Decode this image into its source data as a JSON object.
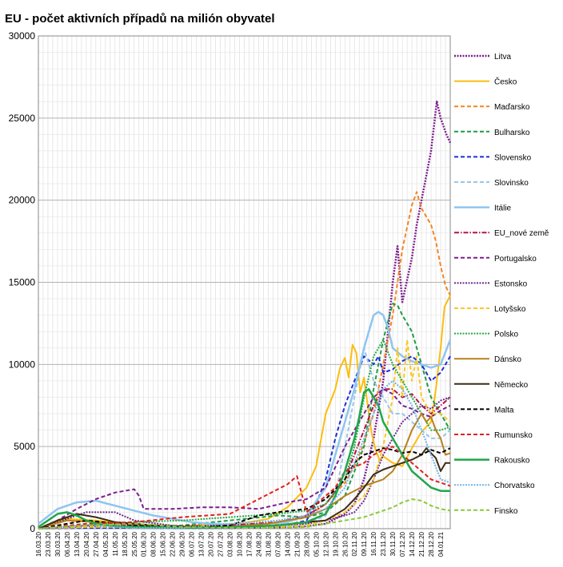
{
  "chart_data": {
    "type": "line",
    "title": "EU - počet aktivních případů na milión obyvatel",
    "xlabel": "",
    "ylabel": "",
    "ylim": [
      0,
      30000
    ],
    "yticks": [
      "0",
      "5000",
      "10000",
      "15000",
      "20000",
      "25000",
      "30000"
    ],
    "grid": true,
    "legend_position": "right",
    "x_tick_labels": [
      "16.03.20",
      "23.03.20",
      "30.03.20",
      "06.04.20",
      "13.04.20",
      "20.04.20",
      "27.04.20",
      "04.05.20",
      "11.05.20",
      "18.05.20",
      "25.05.20",
      "01.06.20",
      "08.06.20",
      "15.06.20",
      "22.06.20",
      "29.06.20",
      "06.07.20",
      "13.07.20",
      "20.07.20",
      "27.07.20",
      "03.08.20",
      "10.08.20",
      "17.08.20",
      "24.08.20",
      "31.08.20",
      "07.09.20",
      "14.09.20",
      "21.09.20",
      "28.09.20",
      "05.10.20",
      "12.10.20",
      "19.10.20",
      "26.10.20",
      "02.11.20",
      "09.11.20",
      "16.11.20",
      "23.11.20",
      "30.11.20",
      "07.12.20",
      "14.12.20",
      "21.12.20",
      "28.12.20",
      "04.01.21"
    ],
    "x_weeks": [
      0,
      1,
      2,
      3,
      4,
      5,
      6,
      7,
      8,
      9,
      10,
      11,
      12,
      13,
      14,
      15,
      16,
      17,
      18,
      19,
      20,
      21,
      22,
      23,
      24,
      25,
      26,
      27,
      28,
      29,
      30,
      31,
      32,
      33,
      34,
      35,
      36,
      37,
      38,
      39,
      40,
      41,
      42
    ],
    "series": [
      {
        "name": "Litva",
        "color": "#7b1f8c",
        "dash": "2,1.5",
        "width": 2.5,
        "x": [
          0,
          5,
          10,
          15,
          20,
          25,
          28,
          30,
          32,
          33,
          34,
          35,
          36,
          36.5,
          37,
          37.5,
          38,
          39,
          39.5,
          40,
          40.5,
          41,
          41.3,
          41.6,
          42,
          42.3,
          42.6,
          43
        ],
        "y": [
          0,
          150,
          100,
          50,
          50,
          80,
          150,
          300,
          900,
          1500,
          3000,
          5500,
          9000,
          12000,
          15000,
          17200,
          13800,
          16500,
          18500,
          20000,
          21500,
          23000,
          24500,
          26000,
          25000,
          24500,
          24000,
          23500
        ]
      },
      {
        "name": "Česko",
        "color": "#fbbd0f",
        "dash": "",
        "width": 2,
        "x": [
          0,
          3,
          6,
          9,
          12,
          15,
          18,
          21,
          24,
          26,
          28,
          29,
          30,
          31,
          31.5,
          32,
          32.4,
          32.8,
          33.2,
          33.6,
          34,
          34.4,
          34.8,
          35.2,
          35.6,
          36,
          37,
          38,
          39,
          40,
          41,
          41.5,
          42,
          42.4,
          43
        ],
        "y": [
          0,
          600,
          500,
          300,
          200,
          150,
          250,
          300,
          600,
          1300,
          2500,
          3800,
          7000,
          8500,
          9800,
          10400,
          9200,
          11200,
          10700,
          8300,
          9200,
          7400,
          5800,
          4800,
          4200,
          4400,
          4000,
          3800,
          4900,
          5900,
          6500,
          8500,
          11000,
          13500,
          14200
        ]
      },
      {
        "name": "Maďarsko",
        "color": "#f7841f",
        "dash": "5,3",
        "width": 2,
        "x": [
          0,
          4,
          8,
          12,
          16,
          20,
          24,
          28,
          30,
          32,
          33,
          34,
          35,
          36,
          37,
          38,
          39,
          39.5,
          40,
          41,
          41.5,
          42,
          42.5,
          43
        ],
        "y": [
          0,
          200,
          300,
          250,
          100,
          50,
          150,
          700,
          1500,
          2800,
          3800,
          5200,
          7000,
          10000,
          13000,
          17000,
          19700,
          20500,
          19500,
          18500,
          17500,
          16000,
          14800,
          14200
        ]
      },
      {
        "name": "Bulharsko",
        "color": "#1f9c45",
        "dash": "5,3",
        "width": 2,
        "x": [
          0,
          5,
          10,
          15,
          20,
          25,
          28,
          30,
          32,
          34,
          35,
          36,
          37,
          37.5,
          38,
          39,
          40,
          41,
          42,
          43
        ],
        "y": [
          0,
          50,
          100,
          200,
          500,
          800,
          700,
          1000,
          2000,
          5000,
          8500,
          11500,
          13700,
          13600,
          13000,
          12000,
          10000,
          8000,
          7000,
          6000
        ]
      },
      {
        "name": "Slovensko",
        "color": "#1f2fd6",
        "dash": "5,3",
        "width": 2,
        "x": [
          0,
          5,
          10,
          15,
          20,
          25,
          28,
          29,
          30,
          31,
          32,
          33,
          34,
          35,
          35.5,
          36,
          37,
          38,
          39,
          40,
          41,
          42,
          43
        ],
        "y": [
          0,
          50,
          50,
          30,
          30,
          100,
          500,
          1500,
          3000,
          5500,
          7500,
          9000,
          10500,
          10000,
          10500,
          9500,
          9700,
          10200,
          10500,
          10000,
          9000,
          9500,
          10500
        ]
      },
      {
        "name": "Slovinsko",
        "color": "#9bc4ea",
        "dash": "5,3",
        "width": 2,
        "x": [
          0,
          5,
          10,
          15,
          20,
          25,
          28,
          30,
          31,
          32,
          33,
          34,
          35,
          36,
          37,
          38,
          39,
          40,
          41,
          42,
          43
        ],
        "y": [
          0,
          300,
          50,
          50,
          50,
          100,
          300,
          800,
          2000,
          5000,
          8000,
          11000,
          9000,
          8000,
          7000,
          7000,
          6500,
          6000,
          5500,
          5500,
          6000
        ]
      },
      {
        "name": "Itálie",
        "color": "#8ec5f0",
        "dash": "",
        "width": 2.5,
        "x": [
          0,
          2,
          4,
          6,
          8,
          10,
          12,
          14,
          16,
          18,
          20,
          22,
          24,
          26,
          28,
          30,
          31,
          32,
          33,
          34,
          35,
          35.5,
          36,
          36.5,
          37,
          38,
          39,
          40,
          41,
          42,
          43
        ],
        "y": [
          300,
          1200,
          1600,
          1700,
          1400,
          1100,
          800,
          600,
          400,
          300,
          250,
          250,
          300,
          400,
          800,
          2500,
          4500,
          6500,
          8500,
          11000,
          13000,
          13200,
          13000,
          12200,
          11000,
          10500,
          10200,
          10000,
          9800,
          10000,
          11500
        ]
      },
      {
        "name": "EU_nové země",
        "color": "#b2124b",
        "dash": "6,2,1.5,2",
        "width": 2,
        "x": [
          0,
          5,
          10,
          15,
          20,
          25,
          28,
          30,
          32,
          33,
          34,
          35,
          36,
          37,
          38,
          39,
          40,
          41,
          42,
          43
        ],
        "y": [
          0,
          200,
          200,
          150,
          200,
          400,
          800,
          1500,
          3000,
          4500,
          6000,
          7500,
          8500,
          8500,
          8000,
          8200,
          7500,
          7000,
          7500,
          8000
        ]
      },
      {
        "name": "Portugalsko",
        "color": "#7b1f8c",
        "dash": "5,3",
        "width": 2,
        "x": [
          0,
          2,
          4,
          6,
          8,
          10,
          10.5,
          11,
          14,
          17,
          20,
          23,
          26,
          28,
          30,
          32,
          34,
          35,
          36,
          37,
          38,
          39,
          40,
          41,
          42,
          43
        ],
        "y": [
          0,
          500,
          1200,
          1800,
          2200,
          2400,
          2000,
          1200,
          1200,
          1300,
          1300,
          1200,
          1600,
          1800,
          2500,
          5000,
          7000,
          8000,
          8500,
          8200,
          7500,
          7300,
          7000,
          6800,
          7200,
          7500
        ]
      },
      {
        "name": "Estonsko",
        "color": "#6a2a8c",
        "dash": "2,1.5",
        "width": 2,
        "x": [
          0,
          3,
          5,
          8,
          10,
          15,
          20,
          25,
          28,
          30,
          32,
          33,
          34,
          35,
          36,
          37,
          38,
          39,
          40,
          41,
          42,
          43
        ],
        "y": [
          0,
          600,
          1000,
          1000,
          500,
          100,
          100,
          200,
          300,
          500,
          800,
          1000,
          1700,
          3000,
          4500,
          5500,
          6500,
          7000,
          7500,
          7300,
          7800,
          8000
        ]
      },
      {
        "name": "Lotyšsko",
        "color": "#fbc724",
        "dash": "5,3",
        "width": 2,
        "x": [
          0,
          5,
          10,
          15,
          20,
          25,
          28,
          30,
          32,
          34,
          35,
          36,
          37,
          37.5,
          38,
          38.5,
          39,
          39.5,
          40,
          41,
          42,
          43
        ],
        "y": [
          0,
          100,
          100,
          50,
          50,
          100,
          200,
          500,
          1000,
          2000,
          3000,
          5000,
          8000,
          11000,
          8000,
          11500,
          9000,
          10500,
          8000,
          7000,
          7000,
          6500
        ]
      },
      {
        "name": "Polsko",
        "color": "#27a844",
        "dash": "2,1.5",
        "width": 2,
        "x": [
          0,
          5,
          10,
          15,
          20,
          25,
          28,
          30,
          32,
          33,
          34,
          35,
          36,
          37,
          38,
          39,
          40,
          41,
          42,
          43
        ],
        "y": [
          0,
          200,
          400,
          500,
          700,
          900,
          1100,
          1500,
          3000,
          5000,
          8000,
          10500,
          11500,
          10000,
          9000,
          8000,
          7000,
          6000,
          6000,
          6200
        ]
      },
      {
        "name": "Dánsko",
        "color": "#b7811c",
        "dash": "",
        "width": 2,
        "x": [
          0,
          3,
          6,
          9,
          12,
          15,
          18,
          21,
          24,
          26,
          28,
          30,
          32,
          34,
          35,
          36,
          37,
          38,
          39,
          40,
          40.5,
          41,
          41.5,
          42,
          42.5,
          43
        ],
        "y": [
          0,
          500,
          400,
          300,
          100,
          80,
          100,
          150,
          300,
          500,
          700,
          1200,
          2000,
          2600,
          2800,
          3000,
          3500,
          4500,
          6000,
          7000,
          6500,
          6800,
          6000,
          5500,
          4500,
          4600
        ]
      },
      {
        "name": "Německo",
        "color": "#3d2c13",
        "dash": "",
        "width": 2,
        "x": [
          0,
          2,
          4,
          6,
          8,
          10,
          12,
          15,
          20,
          25,
          28,
          30,
          32,
          33,
          34,
          35,
          36,
          37,
          38,
          39,
          40,
          40.5,
          41,
          41.5,
          42,
          42.5,
          43
        ],
        "y": [
          0,
          500,
          900,
          700,
          400,
          300,
          200,
          100,
          80,
          200,
          400,
          500,
          1200,
          1800,
          2500,
          3300,
          3600,
          3800,
          4000,
          4200,
          4500,
          4900,
          4600,
          4300,
          3500,
          4000,
          4000
        ]
      },
      {
        "name": "Malta",
        "color": "#000000",
        "dash": "5,3",
        "width": 2,
        "x": [
          0,
          5,
          10,
          15,
          20,
          23,
          25,
          28,
          30,
          32,
          33,
          34,
          35,
          36,
          37,
          38,
          39,
          40,
          41,
          42,
          43
        ],
        "y": [
          0,
          500,
          200,
          100,
          200,
          800,
          1000,
          1200,
          1800,
          3000,
          4000,
          4500,
          4700,
          4900,
          4800,
          4600,
          4700,
          4500,
          4800,
          4600,
          4900
        ]
      },
      {
        "name": "Rumunsko",
        "color": "#e22020",
        "dash": "5,3",
        "width": 2,
        "x": [
          0,
          5,
          10,
          15,
          20,
          22,
          24,
          26,
          27,
          28,
          29,
          30,
          31,
          32,
          34,
          35,
          36,
          37,
          38,
          39,
          40,
          41,
          42,
          43
        ],
        "y": [
          0,
          300,
          400,
          700,
          900,
          1500,
          2100,
          2700,
          3200,
          1000,
          1500,
          2000,
          2500,
          3500,
          4000,
          4500,
          4800,
          5000,
          4500,
          4000,
          3500,
          3000,
          2800,
          2600
        ]
      },
      {
        "name": "Rakousko",
        "color": "#20a64b",
        "dash": "",
        "width": 2.5,
        "x": [
          0,
          1,
          2,
          3,
          4,
          5,
          6,
          8,
          10,
          15,
          20,
          25,
          28,
          30,
          31,
          32,
          33,
          33.5,
          34,
          34.5,
          35,
          35.5,
          36,
          37,
          38,
          39,
          40,
          41,
          42,
          43
        ],
        "y": [
          100,
          500,
          900,
          1000,
          800,
          500,
          300,
          150,
          100,
          50,
          80,
          200,
          400,
          900,
          2000,
          3500,
          5500,
          6800,
          8300,
          8500,
          8000,
          7500,
          6500,
          5500,
          4500,
          3500,
          3000,
          2500,
          2300,
          2300
        ]
      },
      {
        "name": "Chorvatsko",
        "color": "#6fb3e8",
        "dash": "2,1.5",
        "width": 2,
        "x": [
          0,
          5,
          10,
          15,
          20,
          25,
          28,
          30,
          32,
          33,
          34,
          35,
          36,
          37,
          38,
          39,
          40,
          41,
          42,
          43
        ],
        "y": [
          0,
          200,
          50,
          50,
          300,
          500,
          800,
          1200,
          2500,
          4000,
          5500,
          7000,
          8500,
          9000,
          8500,
          7500,
          6000,
          4500,
          3000,
          2800
        ]
      },
      {
        "name": "Finsko",
        "color": "#8cc83c",
        "dash": "5,3",
        "width": 2,
        "x": [
          0,
          5,
          10,
          15,
          20,
          25,
          28,
          30,
          32,
          33,
          34,
          35,
          36,
          37,
          38,
          39,
          40,
          41,
          42,
          43
        ],
        "y": [
          0,
          200,
          300,
          100,
          50,
          50,
          100,
          300,
          500,
          600,
          700,
          900,
          1100,
          1300,
          1600,
          1800,
          1700,
          1400,
          1200,
          1100
        ]
      }
    ]
  }
}
